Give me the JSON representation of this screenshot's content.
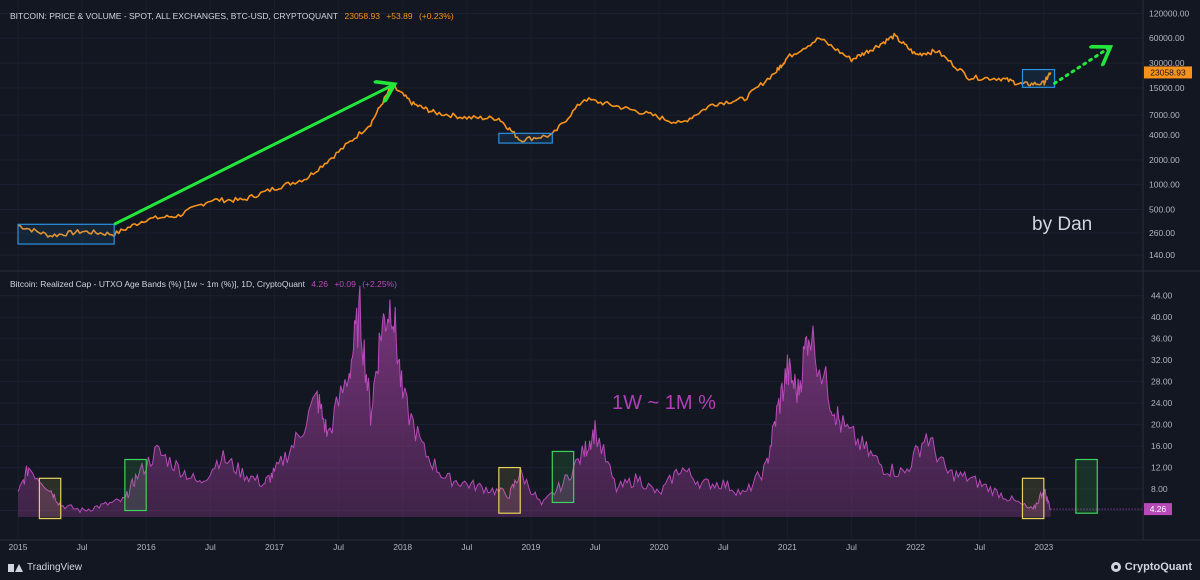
{
  "top_legend": {
    "title": "BITCOIN: PRICE & VOLUME - SPOT, ALL EXCHANGES, BTC-USD, CRYPTOQUANT",
    "last": "23058.93",
    "change": "+53.89",
    "change_pct": "(+0.23%)"
  },
  "bottom_legend": {
    "title": "Bitcoin: Realized Cap - UTXO Age Bands (%) [1w ~ 1m (%)], 1D, CryptoQuant",
    "last": "4.26",
    "change": "+0.09",
    "change_pct": "(+2.25%)"
  },
  "annotations": {
    "author": "by Dan",
    "band_label": "1W ~ 1M %"
  },
  "footer": {
    "left_brand": "TradingView",
    "right_brand": "CryptoQuant"
  },
  "colors": {
    "background": "#131722",
    "price_line": "#f7931a",
    "band_line": "#b84ab8",
    "band_fill": "#8e3a8e",
    "arrow": "#22e63a",
    "box_blue": "#2b8fe0",
    "box_yellow": "#e8d25a",
    "box_green": "#3fd25a",
    "axis_text": "#b2b5be"
  },
  "chart_data": [
    {
      "type": "line",
      "title": "BITCOIN: PRICE & VOLUME - SPOT, ALL EXCHANGES, BTC-USD, CRYPTOQUANT",
      "scale": "log",
      "y_ticks": [
        "120000.00",
        "60000.00",
        "30000.00",
        "15000.00",
        "7000.00",
        "4000.00",
        "2000.00",
        "1000.00",
        "500.00",
        "260.00",
        "140.00"
      ],
      "y_tick_values": [
        120000,
        60000,
        30000,
        15000,
        7000,
        4000,
        2000,
        1000,
        500,
        260,
        140
      ],
      "last_value_label": "23058.93",
      "last_value": 23058.93,
      "x": [
        "2015-01",
        "2015-04",
        "2015-07",
        "2015-10",
        "2016-01",
        "2016-04",
        "2016-07",
        "2016-10",
        "2017-01",
        "2017-04",
        "2017-07",
        "2017-10",
        "2017-12",
        "2018-02",
        "2018-04",
        "2018-07",
        "2018-10",
        "2018-12",
        "2019-03",
        "2019-06",
        "2019-09",
        "2019-12",
        "2020-03",
        "2020-06",
        "2020-09",
        "2020-12",
        "2021-01",
        "2021-04",
        "2021-07",
        "2021-09",
        "2021-11",
        "2022-01",
        "2022-03",
        "2022-06",
        "2022-09",
        "2022-11",
        "2023-01",
        "2023-01-20"
      ],
      "series": [
        {
          "values": [
            320,
            240,
            270,
            250,
            380,
            420,
            650,
            650,
            900,
            1200,
            2500,
            5500,
            16000,
            9500,
            7500,
            6500,
            6400,
            3500,
            4000,
            11000,
            9000,
            7200,
            5500,
            9500,
            11000,
            24000,
            35000,
            60000,
            33000,
            45000,
            64000,
            38000,
            42000,
            20000,
            19500,
            16500,
            17000,
            23058.93
          ]
        }
      ],
      "boxes": [
        {
          "color": "blue",
          "x_range": [
            "2015-01",
            "2015-10"
          ],
          "y_range": [
            190,
            330
          ]
        },
        {
          "color": "blue",
          "x_range": [
            "2018-10",
            "2019-03"
          ],
          "y_range": [
            3200,
            4200
          ]
        },
        {
          "color": "blue",
          "x_range": [
            "2022-11",
            "2023-02"
          ],
          "y_range": [
            15200,
            25000
          ]
        }
      ],
      "arrows": [
        {
          "style": "solid",
          "from": [
            "2015-10",
            330
          ],
          "to": [
            "2017-12",
            16000
          ]
        },
        {
          "style": "dotted",
          "from": [
            "2023-02",
            17000
          ],
          "to": [
            "2023-07",
            45000
          ]
        }
      ]
    },
    {
      "type": "area",
      "title": "Bitcoin: Realized Cap - UTXO Age Bands (%) [1w ~ 1m (%)], 1D, CryptoQuant",
      "y_ticks": [
        "44.00",
        "40.00",
        "36.00",
        "32.00",
        "28.00",
        "24.00",
        "20.00",
        "16.00",
        "12.00",
        "8.00",
        "4.00"
      ],
      "y_tick_values": [
        44,
        40,
        36,
        32,
        28,
        24,
        20,
        16,
        12,
        8,
        4
      ],
      "ylim": [
        0,
        46
      ],
      "last_value_label": "4.26",
      "last_value": 4.26,
      "x_ticks": [
        "2015",
        "Jul",
        "2016",
        "Jul",
        "2017",
        "Jul",
        "2018",
        "Jul",
        "2019",
        "Jul",
        "2020",
        "Jul",
        "2021",
        "Jul",
        "2022",
        "Jul",
        "2023"
      ],
      "x": [
        "2015-01",
        "2015-02",
        "2015-04",
        "2015-05",
        "2015-07",
        "2015-09",
        "2015-11",
        "2015-12",
        "2016-02",
        "2016-04",
        "2016-06",
        "2016-08",
        "2016-10",
        "2016-12",
        "2017-01",
        "2017-03",
        "2017-05",
        "2017-06",
        "2017-08",
        "2017-09",
        "2017-10",
        "2017-11",
        "2017-12",
        "2018-01",
        "2018-03",
        "2018-05",
        "2018-07",
        "2018-09",
        "2018-11",
        "2018-12",
        "2019-02",
        "2019-04",
        "2019-06",
        "2019-07",
        "2019-09",
        "2019-11",
        "2020-01",
        "2020-03",
        "2020-05",
        "2020-07",
        "2020-09",
        "2020-11",
        "2020-12",
        "2021-01",
        "2021-02",
        "2021-03",
        "2021-05",
        "2021-06",
        "2021-08",
        "2021-10",
        "2021-12",
        "2022-02",
        "2022-04",
        "2022-06",
        "2022-08",
        "2022-10",
        "2022-12",
        "2023-01",
        "2023-01-20"
      ],
      "series": [
        {
          "name": "1W ~ 1M %",
          "values": [
            7,
            12,
            8,
            5,
            4,
            5,
            6,
            10,
            15,
            12,
            9,
            14,
            11,
            9,
            11,
            17,
            25,
            18,
            30,
            41,
            22,
            38,
            43,
            25,
            15,
            10,
            9,
            8,
            7,
            11,
            5,
            9,
            15,
            19,
            8,
            10,
            7,
            12,
            9,
            9,
            7,
            12,
            22,
            30,
            26,
            38,
            25,
            20,
            16,
            12,
            11,
            18,
            11,
            10,
            8,
            6,
            4,
            8,
            4.26
          ]
        }
      ],
      "boxes": [
        {
          "color": "yellow",
          "x_range": [
            "2015-03",
            "2015-05"
          ],
          "y_range": [
            2.5,
            10
          ]
        },
        {
          "color": "green",
          "x_range": [
            "2015-11",
            "2016-01"
          ],
          "y_range": [
            4,
            13.5
          ]
        },
        {
          "color": "yellow",
          "x_range": [
            "2018-10",
            "2018-12"
          ],
          "y_range": [
            3.5,
            12
          ]
        },
        {
          "color": "green",
          "x_range": [
            "2019-03",
            "2019-05"
          ],
          "y_range": [
            5.5,
            15
          ]
        },
        {
          "color": "yellow",
          "x_range": [
            "2022-11",
            "2023-01"
          ],
          "y_range": [
            2.5,
            10
          ]
        },
        {
          "color": "green",
          "x_range": [
            "2023-04",
            "2023-06"
          ],
          "y_range": [
            3.5,
            13.5
          ]
        }
      ]
    }
  ]
}
